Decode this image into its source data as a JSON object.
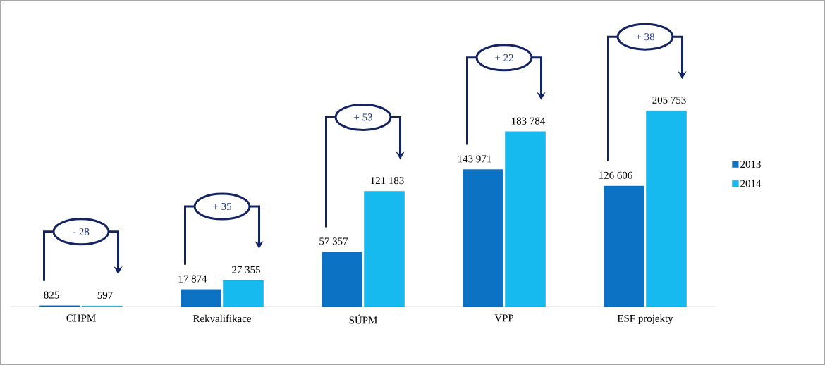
{
  "chart_data": {
    "type": "bar",
    "categories": [
      "CHPM",
      "Rekvalifikace",
      "SÚPM",
      "VPP",
      "ESF projekty"
    ],
    "series": [
      {
        "name": "2013",
        "color": "#0b72c4",
        "values": [
          825,
          17874,
          57357,
          143971,
          126606
        ],
        "value_labels": [
          "825",
          "17 874",
          "57 357",
          "143 971",
          "126 606"
        ]
      },
      {
        "name": "2014",
        "color": "#16baee",
        "values": [
          597,
          27355,
          121183,
          183784,
          205753
        ],
        "value_labels": [
          "597",
          "27 355",
          "121 183",
          "183 784",
          "205 753"
        ]
      }
    ],
    "annotations": [
      "- 28",
      "+ 35",
      "+ 53",
      "+ 22",
      "+ 38"
    ],
    "tick_labels": "x",
    "legend": "right"
  }
}
